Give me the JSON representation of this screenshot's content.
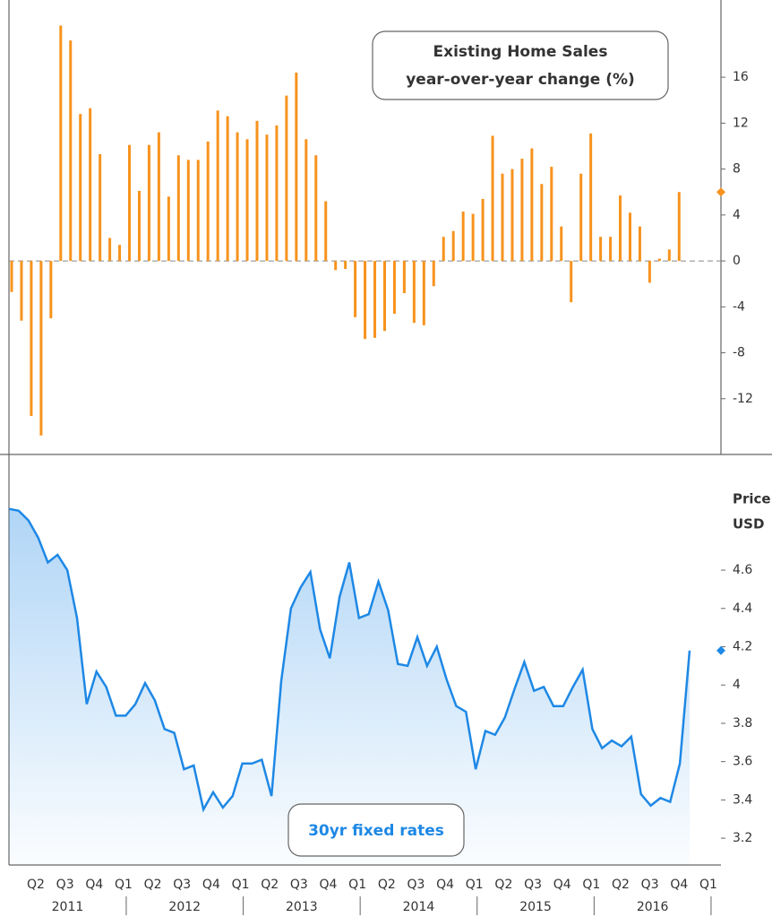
{
  "chart_data": [
    {
      "type": "bar",
      "title": "Existing Home Sales",
      "subtitle": "year-over-year change (%)",
      "color": "#f7931e",
      "values": [
        -2.7,
        -5.2,
        -13.5,
        -15.2,
        -5.0,
        20.5,
        19.2,
        12.8,
        13.3,
        9.3,
        2.0,
        1.4,
        10.1,
        6.1,
        10.1,
        11.2,
        5.6,
        9.2,
        8.8,
        8.8,
        10.4,
        13.1,
        12.6,
        11.2,
        10.6,
        12.2,
        11.0,
        11.8,
        14.4,
        16.4,
        10.6,
        9.2,
        5.2,
        -0.8,
        -0.7,
        -4.9,
        -6.8,
        -6.7,
        -6.1,
        -4.6,
        -2.8,
        -5.4,
        -5.6,
        -2.2,
        2.1,
        2.6,
        4.3,
        4.1,
        5.4,
        10.9,
        7.6,
        8.0,
        8.9,
        9.8,
        6.7,
        8.2,
        3.0,
        -3.6,
        7.6,
        11.1,
        2.1,
        2.1,
        5.7,
        4.2,
        3.0,
        -1.9,
        0.2,
        1.0,
        6.0
      ],
      "ylim": [
        -16.7,
        22.1
      ],
      "yticks": [
        16,
        12,
        8,
        4,
        0,
        -4,
        -8,
        -12
      ],
      "zero_line": true,
      "last_marker": true
    },
    {
      "type": "area",
      "title": "30yr fixed rates",
      "ylabel": [
        "Price",
        "USD"
      ],
      "color": "#1e88e5",
      "values": [
        4.92,
        4.91,
        4.86,
        4.77,
        4.64,
        4.68,
        4.6,
        4.35,
        3.9,
        4.07,
        3.99,
        3.84,
        3.84,
        3.9,
        4.01,
        3.92,
        3.77,
        3.75,
        3.56,
        3.58,
        3.35,
        3.44,
        3.36,
        3.42,
        3.59,
        3.59,
        3.61,
        3.42,
        4.02,
        4.4,
        4.51,
        4.59,
        4.29,
        4.14,
        4.46,
        4.64,
        4.35,
        4.37,
        4.54,
        4.39,
        4.11,
        4.1,
        4.25,
        4.1,
        4.2,
        4.03,
        3.89,
        3.86,
        3.56,
        3.76,
        3.74,
        3.83,
        3.98,
        4.12,
        3.97,
        3.99,
        3.89,
        3.89,
        3.99,
        4.08,
        3.77,
        3.67,
        3.71,
        3.68,
        3.73,
        3.43,
        3.37,
        3.41,
        3.39,
        3.59,
        4.18
      ],
      "ylim": [
        3.06,
        5.19
      ],
      "yticks": [
        4.6,
        4.4,
        4.2,
        4,
        3.8,
        3.6,
        3.4,
        3.2
      ],
      "last_marker": true
    }
  ],
  "x_axis": {
    "quarters": [
      "Q2",
      "Q3",
      "Q4",
      "Q1",
      "Q2",
      "Q3",
      "Q4",
      "Q1",
      "Q2",
      "Q3",
      "Q4",
      "Q1",
      "Q2",
      "Q3",
      "Q4",
      "Q1",
      "Q2",
      "Q3",
      "Q4",
      "Q1",
      "Q2",
      "Q3",
      "Q4",
      "Q1"
    ],
    "years": [
      "2011",
      "2012",
      "2013",
      "2014",
      "2015",
      "2016"
    ]
  }
}
